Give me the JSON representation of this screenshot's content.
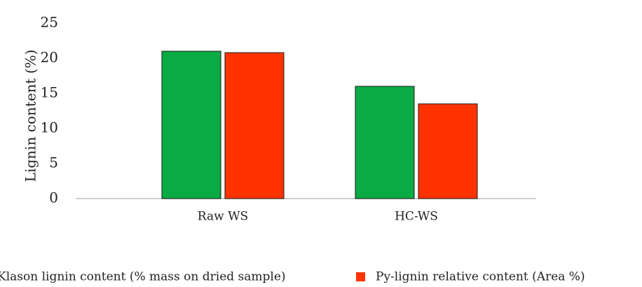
{
  "chart_data": {
    "type": "bar",
    "title": "",
    "xlabel": "",
    "ylabel": "Lignin content (%)",
    "categories": [
      "Raw WS",
      "HC-WS"
    ],
    "series": [
      {
        "name": "Klason lignin content (% mass on dried sample)",
        "values": [
          21.0,
          16.0
        ],
        "color": "#0aaa44"
      },
      {
        "name": "Py-lignin relative content (Area %)",
        "values": [
          20.8,
          13.5
        ],
        "color": "#ff3300"
      }
    ],
    "ylim": [
      0,
      25
    ],
    "yticks": [
      0,
      5,
      10,
      15,
      20,
      25
    ],
    "grid": false,
    "legend_position": "bottom"
  }
}
